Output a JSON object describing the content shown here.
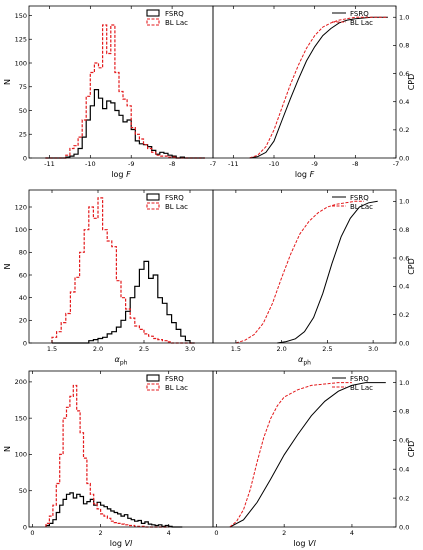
{
  "colors": {
    "fsrq": "#000000",
    "bllac": "#e31a1c"
  },
  "chart_data": [
    {
      "type": "histogram",
      "row": 0,
      "xlabel": "log F",
      "ylabel": "N",
      "ylabel_right": "CPD",
      "xlim_hist": [
        -11.5,
        -7
      ],
      "ylim_hist": [
        0,
        160
      ],
      "xlim_cdf": [
        -11.5,
        -7
      ],
      "ylim_cdf": [
        0,
        1.08
      ],
      "xticks": [
        "-11",
        "-10",
        "-9",
        "-8",
        "-7"
      ],
      "xtick_values": [
        -11,
        -10,
        -9,
        -8,
        -7
      ],
      "yticks": [
        "0",
        "25",
        "50",
        "75",
        "100",
        "125",
        "150"
      ],
      "ytick_values": [
        0,
        25,
        50,
        75,
        100,
        125,
        150
      ],
      "cdf_ticks": [
        "0.0",
        "0.2",
        "0.4",
        "0.6",
        "0.8",
        "1.0"
      ],
      "cdf_tick_values": [
        0,
        0.2,
        0.4,
        0.6,
        0.8,
        1.0
      ],
      "legend_position": "top-right",
      "series": [
        {
          "name": "FSRQ",
          "style": "solid",
          "bin_edges": [
            -11.1,
            -11.0,
            -10.9,
            -10.8,
            -10.7,
            -10.6,
            -10.5,
            -10.4,
            -10.3,
            -10.2,
            -10.1,
            -10.0,
            -9.9,
            -9.8,
            -9.7,
            -9.6,
            -9.5,
            -9.4,
            -9.3,
            -9.2,
            -9.1,
            -9.0,
            -8.9,
            -8.8,
            -8.7,
            -8.6,
            -8.5,
            -8.4,
            -8.3,
            -8.2,
            -8.1,
            -8.0,
            -7.9,
            -7.8,
            -7.7,
            -7.6,
            -7.5,
            -7.4,
            -7.3,
            -7.2
          ],
          "counts": [
            0,
            0,
            0,
            0,
            0,
            1,
            2,
            4,
            10,
            22,
            40,
            55,
            72,
            63,
            52,
            60,
            58,
            50,
            45,
            38,
            40,
            30,
            18,
            15,
            14,
            12,
            8,
            4,
            6,
            5,
            3,
            2,
            0,
            1,
            0,
            0,
            0,
            0,
            0
          ],
          "cdf": {
            "x": [
              -10.6,
              -10.4,
              -10.2,
              -10.0,
              -9.8,
              -9.6,
              -9.4,
              -9.2,
              -9.0,
              -8.8,
              -8.6,
              -8.4,
              -8.2,
              -8.0,
              -7.8,
              -7.6,
              -7.4,
              -7.2
            ],
            "y": [
              0.0,
              0.01,
              0.04,
              0.12,
              0.27,
              0.42,
              0.56,
              0.69,
              0.79,
              0.87,
              0.92,
              0.96,
              0.98,
              0.99,
              0.995,
              1.0,
              1.0,
              1.0
            ]
          }
        },
        {
          "name": "BL Lac",
          "style": "dashed",
          "bin_edges": [
            -11.1,
            -11.0,
            -10.9,
            -10.8,
            -10.7,
            -10.6,
            -10.5,
            -10.4,
            -10.3,
            -10.2,
            -10.1,
            -10.0,
            -9.9,
            -9.8,
            -9.7,
            -9.6,
            -9.5,
            -9.4,
            -9.3,
            -9.2,
            -9.1,
            -9.0,
            -8.9,
            -8.8,
            -8.7,
            -8.6,
            -8.5,
            -8.4,
            -8.3,
            -8.2,
            -8.1,
            -8.0,
            -7.9,
            -7.8,
            -7.7,
            -7.6,
            -7.5,
            -7.4,
            -7.3,
            -7.2
          ],
          "counts": [
            0,
            0,
            0,
            0,
            0,
            3,
            10,
            13,
            22,
            40,
            65,
            90,
            100,
            95,
            140,
            110,
            140,
            90,
            70,
            62,
            55,
            32,
            25,
            20,
            14,
            10,
            6,
            3,
            2,
            2,
            1,
            1,
            0,
            0,
            0,
            0,
            0,
            0,
            0
          ],
          "cdf": {
            "x": [
              -10.6,
              -10.4,
              -10.2,
              -10.0,
              -9.8,
              -9.6,
              -9.4,
              -9.2,
              -9.0,
              -8.8,
              -8.6,
              -8.4,
              -8.2,
              -8.0,
              -7.8,
              -7.6,
              -7.4,
              -7.2
            ],
            "y": [
              0.0,
              0.02,
              0.08,
              0.2,
              0.36,
              0.52,
              0.66,
              0.78,
              0.87,
              0.93,
              0.96,
              0.98,
              0.99,
              1.0,
              1.0,
              1.0,
              1.0,
              1.0
            ]
          }
        }
      ]
    },
    {
      "type": "histogram",
      "row": 1,
      "xlabel": "αph",
      "ylabel": "N",
      "ylabel_right": "CPD",
      "xlim_hist": [
        1.25,
        3.25
      ],
      "ylim_hist": [
        0,
        135
      ],
      "xlim_cdf": [
        1.25,
        3.25
      ],
      "ylim_cdf": [
        0,
        1.08
      ],
      "xticks": [
        "1.5",
        "2.0",
        "2.5",
        "3.0"
      ],
      "xtick_values": [
        1.5,
        2.0,
        2.5,
        3.0
      ],
      "yticks": [
        "0",
        "20",
        "40",
        "60",
        "80",
        "100",
        "120"
      ],
      "ytick_values": [
        0,
        20,
        40,
        60,
        80,
        100,
        120
      ],
      "cdf_ticks": [
        "0.0",
        "0.2",
        "0.4",
        "0.6",
        "0.8",
        "1.0"
      ],
      "cdf_tick_values": [
        0,
        0.2,
        0.4,
        0.6,
        0.8,
        1.0
      ],
      "legend_position": "top-right",
      "series": [
        {
          "name": "FSRQ",
          "style": "solid",
          "bin_edges": [
            1.5,
            1.55,
            1.6,
            1.65,
            1.7,
            1.75,
            1.8,
            1.85,
            1.9,
            1.95,
            2.0,
            2.05,
            2.1,
            2.15,
            2.2,
            2.25,
            2.3,
            2.35,
            2.4,
            2.45,
            2.5,
            2.55,
            2.6,
            2.65,
            2.7,
            2.75,
            2.8,
            2.85,
            2.9,
            2.95,
            3.0,
            3.05
          ],
          "counts": [
            0,
            0,
            0,
            0,
            0,
            0,
            0,
            0,
            2,
            3,
            4,
            5,
            8,
            10,
            14,
            20,
            28,
            40,
            50,
            65,
            72,
            57,
            60,
            40,
            35,
            25,
            18,
            12,
            6,
            2,
            0
          ],
          "cdf": {
            "x": [
              1.95,
              2.05,
              2.15,
              2.25,
              2.35,
              2.45,
              2.55,
              2.65,
              2.75,
              2.85,
              2.95,
              3.05
            ],
            "y": [
              0.0,
              0.01,
              0.03,
              0.08,
              0.18,
              0.35,
              0.56,
              0.75,
              0.88,
              0.96,
              0.99,
              1.0
            ]
          }
        },
        {
          "name": "BL Lac",
          "style": "dashed",
          "bin_edges": [
            1.5,
            1.55,
            1.6,
            1.65,
            1.7,
            1.75,
            1.8,
            1.85,
            1.9,
            1.95,
            2.0,
            2.05,
            2.1,
            2.15,
            2.2,
            2.25,
            2.3,
            2.35,
            2.4,
            2.45,
            2.5,
            2.55,
            2.6,
            2.65,
            2.7,
            2.75,
            2.8,
            2.85,
            2.9,
            2.95,
            3.0,
            3.05
          ],
          "counts": [
            5,
            10,
            18,
            26,
            45,
            58,
            80,
            100,
            120,
            110,
            128,
            100,
            90,
            85,
            55,
            40,
            30,
            22,
            15,
            12,
            8,
            6,
            4,
            3,
            2,
            1,
            0,
            0,
            0,
            0,
            0
          ],
          "cdf": {
            "x": [
              1.5,
              1.6,
              1.7,
              1.8,
              1.9,
              2.0,
              2.1,
              2.2,
              2.3,
              2.4,
              2.5,
              2.6,
              2.7,
              2.8,
              2.9
            ],
            "y": [
              0.0,
              0.02,
              0.06,
              0.14,
              0.28,
              0.46,
              0.63,
              0.77,
              0.86,
              0.92,
              0.96,
              0.98,
              0.99,
              1.0,
              1.0
            ]
          }
        }
      ]
    },
    {
      "type": "histogram",
      "row": 2,
      "xlabel": "log Vl",
      "ylabel": "N",
      "ylabel_right": "CPD",
      "xlim_hist": [
        -0.1,
        5.3
      ],
      "ylim_hist": [
        0,
        215
      ],
      "xlim_cdf": [
        -0.1,
        5.3
      ],
      "ylim_cdf": [
        0,
        1.08
      ],
      "xticks": [
        "0",
        "2",
        "4"
      ],
      "xtick_values": [
        0,
        2,
        4
      ],
      "yticks": [
        "0",
        "50",
        "100",
        "150",
        "200"
      ],
      "ytick_values": [
        0,
        50,
        100,
        150,
        200
      ],
      "cdf_ticks": [
        "0.0",
        "0.2",
        "0.4",
        "0.6",
        "0.8",
        "1.0"
      ],
      "cdf_tick_values": [
        0,
        0.2,
        0.4,
        0.6,
        0.8,
        1.0
      ],
      "legend_position": "top-right",
      "series": [
        {
          "name": "FSRQ",
          "style": "solid",
          "bin_edges": [
            0.4,
            0.5,
            0.6,
            0.7,
            0.8,
            0.9,
            1.0,
            1.1,
            1.2,
            1.3,
            1.4,
            1.5,
            1.6,
            1.7,
            1.8,
            1.9,
            2.0,
            2.1,
            2.2,
            2.3,
            2.4,
            2.5,
            2.6,
            2.7,
            2.8,
            2.9,
            3.0,
            3.1,
            3.2,
            3.3,
            3.4,
            3.5,
            3.6,
            3.7,
            3.8,
            3.9,
            4.0,
            4.1,
            4.2,
            4.3,
            4.4
          ],
          "counts": [
            2,
            5,
            10,
            20,
            30,
            38,
            45,
            47,
            40,
            45,
            42,
            32,
            35,
            38,
            30,
            34,
            30,
            28,
            25,
            22,
            20,
            18,
            15,
            17,
            12,
            10,
            8,
            9,
            5,
            7,
            4,
            3,
            2,
            3,
            1,
            2,
            1,
            0,
            0,
            0
          ],
          "cdf": {
            "x": [
              0.4,
              0.8,
              1.2,
              1.6,
              2.0,
              2.4,
              2.8,
              3.2,
              3.6,
              4.0,
              4.4,
              5.0
            ],
            "y": [
              0.0,
              0.05,
              0.17,
              0.33,
              0.5,
              0.64,
              0.77,
              0.87,
              0.94,
              0.98,
              1.0,
              1.0
            ]
          }
        },
        {
          "name": "BL Lac",
          "style": "dashed",
          "bin_edges": [
            0.4,
            0.5,
            0.6,
            0.7,
            0.8,
            0.9,
            1.0,
            1.1,
            1.2,
            1.3,
            1.4,
            1.5,
            1.6,
            1.7,
            1.8,
            1.9,
            2.0,
            2.1,
            2.2,
            2.3,
            2.4,
            2.5,
            2.6,
            2.7,
            2.8,
            2.9,
            3.0,
            3.1,
            3.2,
            3.3,
            3.4,
            3.5,
            3.6,
            3.7,
            3.8,
            3.9,
            4.0
          ],
          "counts": [
            5,
            15,
            30,
            60,
            100,
            150,
            165,
            180,
            195,
            160,
            130,
            95,
            60,
            45,
            32,
            25,
            18,
            15,
            12,
            8,
            6,
            5,
            4,
            3,
            2,
            2,
            1,
            1,
            1,
            0,
            0,
            0,
            0,
            0,
            0,
            0
          ],
          "cdf": {
            "x": [
              0.4,
              0.6,
              0.8,
              1.0,
              1.2,
              1.4,
              1.6,
              1.8,
              2.0,
              2.4,
              2.8,
              3.2,
              3.6,
              4.0
            ],
            "y": [
              0.0,
              0.04,
              0.12,
              0.26,
              0.45,
              0.62,
              0.75,
              0.84,
              0.9,
              0.95,
              0.98,
              0.99,
              1.0,
              1.0
            ]
          }
        }
      ]
    }
  ]
}
